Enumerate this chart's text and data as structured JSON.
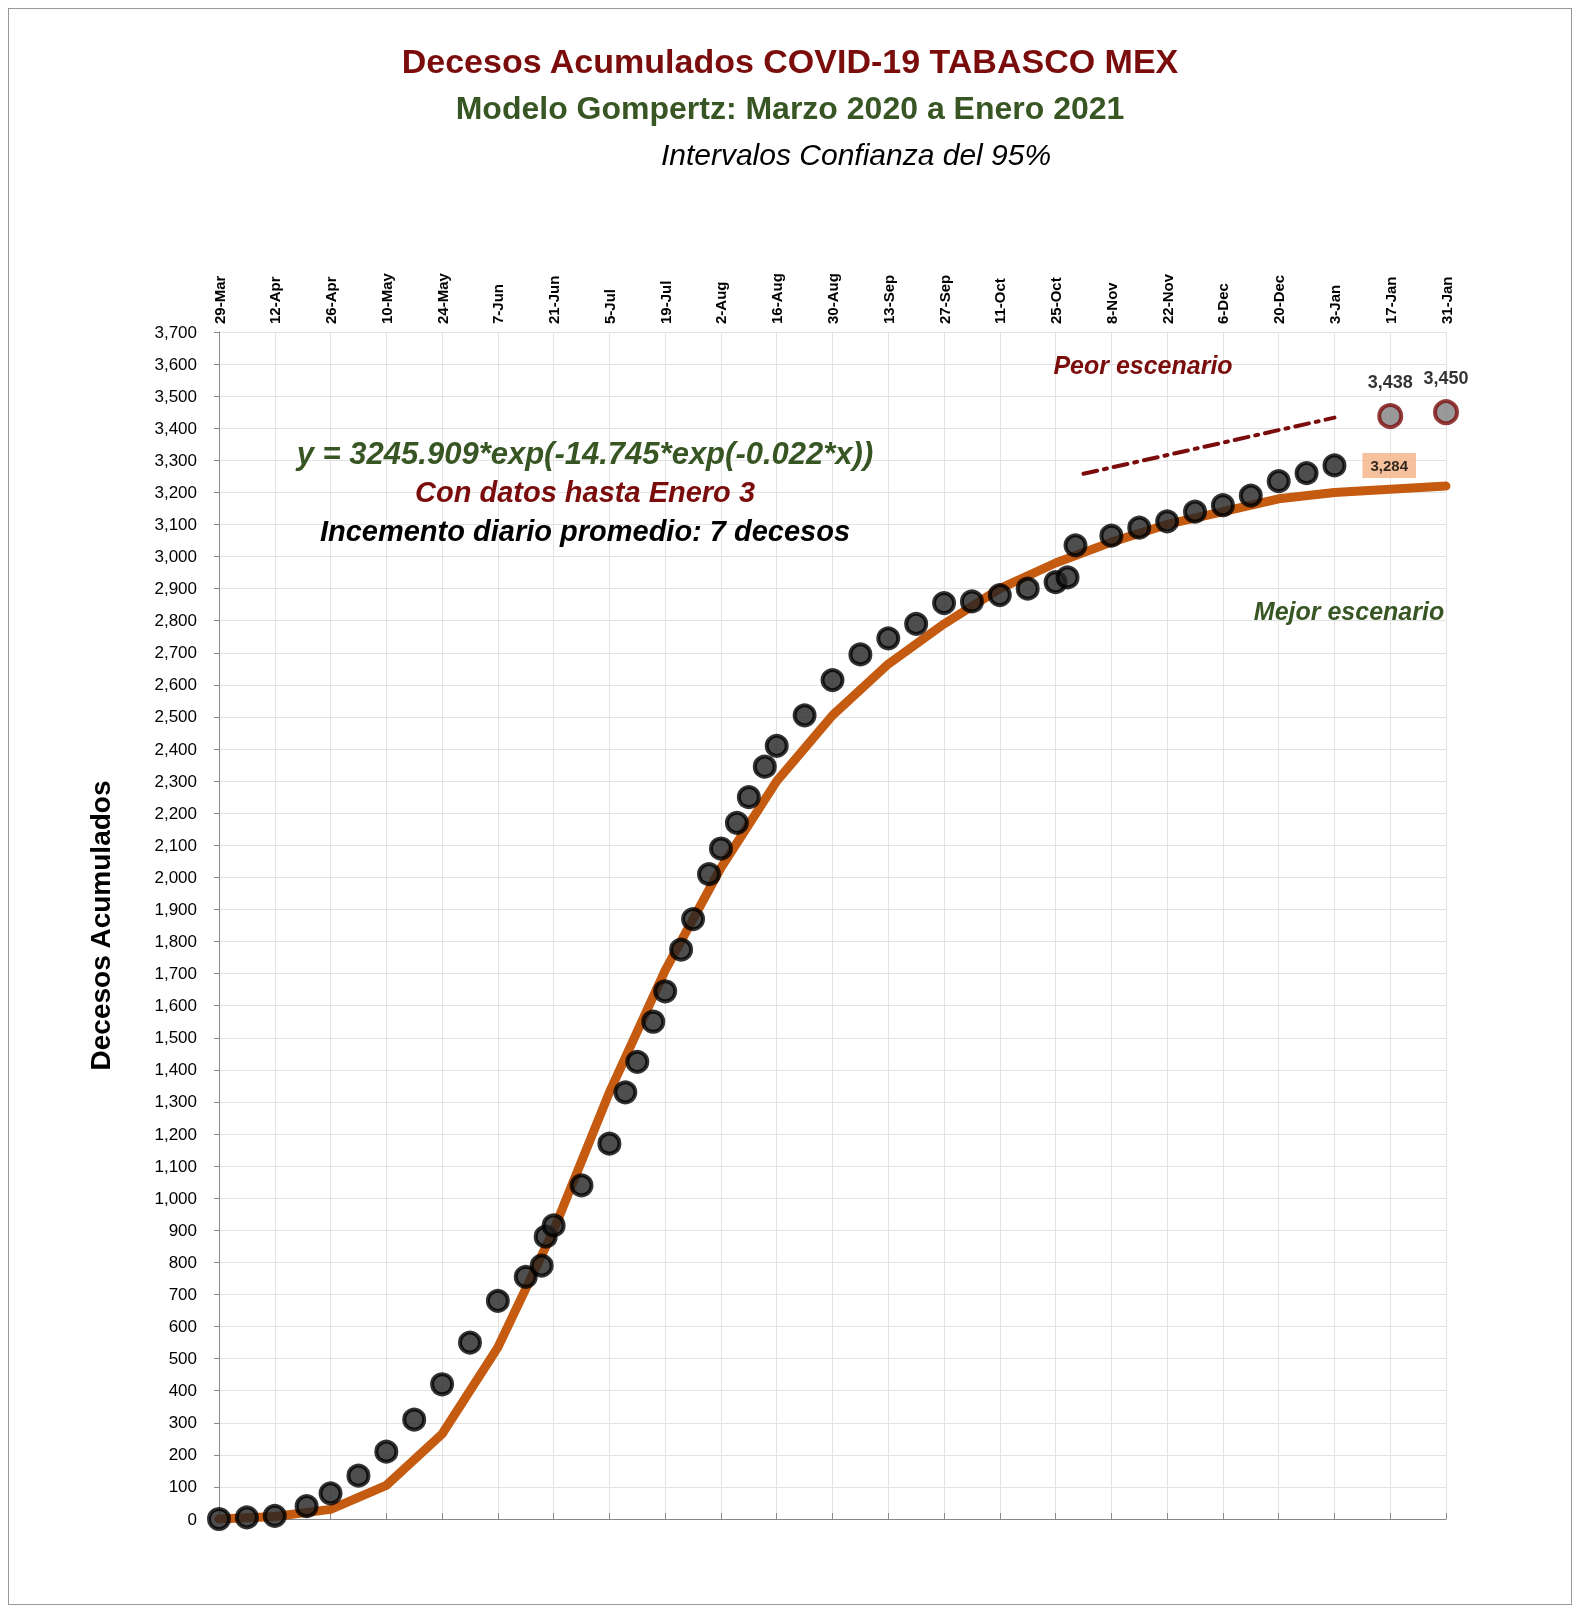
{
  "chart_data": {
    "type": "scatter",
    "title": "Decesos Acumulados COVID-19 TABASCO MEX",
    "subtitle": "Modelo Gompertz: Marzo 2020 a Enero 2021",
    "ylabel": "Decesos Acumulados",
    "annotations": [
      "Intervalos Confianza del 95%",
      "y = 3245.909*exp(-14.745*exp(-0.022*x))",
      "Con datos hasta Enero 3",
      "Incemento diario promedio: 7 decesos",
      "Peor escenario",
      "Mejor escenario"
    ],
    "xlim": [
      "2020-03-29",
      "2021-01-31"
    ],
    "xticks": [
      {
        "value": "2020-03-29",
        "label": "29-Mar"
      },
      {
        "value": "2020-04-12",
        "label": "12-Apr"
      },
      {
        "value": "2020-04-26",
        "label": "26-Apr"
      },
      {
        "value": "2020-05-10",
        "label": "10-May"
      },
      {
        "value": "2020-05-24",
        "label": "24-May"
      },
      {
        "value": "2020-06-07",
        "label": "7-Jun"
      },
      {
        "value": "2020-06-21",
        "label": "21-Jun"
      },
      {
        "value": "2020-07-05",
        "label": "5-Jul"
      },
      {
        "value": "2020-07-19",
        "label": "19-Jul"
      },
      {
        "value": "2020-08-02",
        "label": "2-Aug"
      },
      {
        "value": "2020-08-16",
        "label": "16-Aug"
      },
      {
        "value": "2020-08-30",
        "label": "30-Aug"
      },
      {
        "value": "2020-09-13",
        "label": "13-Sep"
      },
      {
        "value": "2020-09-27",
        "label": "27-Sep"
      },
      {
        "value": "2020-10-11",
        "label": "11-Oct"
      },
      {
        "value": "2020-10-25",
        "label": "25-Oct"
      },
      {
        "value": "2020-11-08",
        "label": "8-Nov"
      },
      {
        "value": "2020-11-22",
        "label": "22-Nov"
      },
      {
        "value": "2020-12-06",
        "label": "6-Dec"
      },
      {
        "value": "2020-12-20",
        "label": "20-Dec"
      },
      {
        "value": "2021-01-03",
        "label": "3-Jan"
      },
      {
        "value": "2021-01-17",
        "label": "17-Jan"
      },
      {
        "value": "2021-01-31",
        "label": "31-Jan"
      }
    ],
    "ylim": [
      0,
      3700
    ],
    "yticks": [
      0,
      100,
      200,
      300,
      400,
      500,
      600,
      700,
      800,
      900,
      {
        "value": 1000,
        "label": "1,000"
      },
      {
        "value": 1100,
        "label": "1,100"
      },
      {
        "value": 1200,
        "label": "1,200"
      },
      {
        "value": 1300,
        "label": "1,300"
      },
      {
        "value": 1400,
        "label": "1,400"
      },
      {
        "value": 1500,
        "label": "1,500"
      },
      {
        "value": 1600,
        "label": "1,600"
      },
      {
        "value": 1700,
        "label": "1,700"
      },
      {
        "value": 1800,
        "label": "1,800"
      },
      {
        "value": 1900,
        "label": "1,900"
      },
      {
        "value": 2000,
        "label": "2,000"
      },
      {
        "value": 2100,
        "label": "2,100"
      },
      {
        "value": 2200,
        "label": "2,200"
      },
      {
        "value": 2300,
        "label": "2,300"
      },
      {
        "value": 2400,
        "label": "2,400"
      },
      {
        "value": 2500,
        "label": "2,500"
      },
      {
        "value": 2600,
        "label": "2,600"
      },
      {
        "value": 2700,
        "label": "2,700"
      },
      {
        "value": 2800,
        "label": "2,800"
      },
      {
        "value": 2900,
        "label": "2,900"
      },
      {
        "value": 3000,
        "label": "3,000"
      },
      {
        "value": 3100,
        "label": "3,100"
      },
      {
        "value": 3200,
        "label": "3,200"
      },
      {
        "value": 3300,
        "label": "3,300"
      },
      {
        "value": 3400,
        "label": "3,400"
      },
      {
        "value": 3500,
        "label": "3,500"
      },
      {
        "value": 3600,
        "label": "3,600"
      },
      {
        "value": 3700,
        "label": "3,700"
      }
    ],
    "grid": true,
    "series": [
      {
        "type": "line",
        "color": "#c55a11",
        "marker": "none",
        "x": [
          "2020-03-29",
          "2020-04-12",
          "2020-04-26",
          "2020-05-10",
          "2020-05-24",
          "2020-06-07",
          "2020-06-21",
          "2020-07-05",
          "2020-07-19",
          "2020-08-02",
          "2020-08-16",
          "2020-08-30",
          "2020-09-13",
          "2020-09-27",
          "2020-10-11",
          "2020-10-25",
          "2020-11-08",
          "2020-11-22",
          "2020-12-06",
          "2020-12-20",
          "2021-01-03",
          "2021-01-17",
          "2021-01-31"
        ],
        "values": [
          0,
          8,
          30,
          105,
          265,
          535,
          900,
          1330,
          1710,
          2030,
          2300,
          2505,
          2665,
          2790,
          2900,
          2980,
          3045,
          3100,
          3140,
          3180,
          3200,
          3210,
          3220
        ]
      },
      {
        "type": "line",
        "color": "#7b0c0c",
        "marker": "none",
        "line_style": "dashed",
        "x": [
          "2020-11-01",
          "2021-01-03"
        ],
        "values": [
          3258,
          3433
        ]
      },
      {
        "color": "#222222",
        "marker": "circle",
        "x": [
          "2020-03-29",
          "2020-04-05",
          "2020-04-12",
          "2020-04-20",
          "2020-04-26",
          "2020-05-03",
          "2020-05-10",
          "2020-05-17",
          "2020-05-24",
          "2020-05-31",
          "2020-06-07",
          "2020-06-14",
          "2020-06-18",
          "2020-06-19",
          "2020-06-21",
          "2020-06-28",
          "2020-07-05",
          "2020-07-09",
          "2020-07-12",
          "2020-07-16",
          "2020-07-19",
          "2020-07-23",
          "2020-07-26",
          "2020-07-30",
          "2020-08-02",
          "2020-08-06",
          "2020-08-09",
          "2020-08-13",
          "2020-08-16",
          "2020-08-23",
          "2020-08-30",
          "2020-09-06",
          "2020-09-13",
          "2020-09-20",
          "2020-09-27",
          "2020-10-04",
          "2020-10-11",
          "2020-10-18",
          "2020-10-25",
          "2020-10-28",
          "2020-10-30",
          "2020-11-08",
          "2020-11-15",
          "2020-11-22",
          "2020-11-29",
          "2020-12-06",
          "2020-12-13",
          "2020-12-20",
          "2020-12-27",
          "2021-01-03"
        ],
        "values": [
          0,
          5,
          10,
          40,
          80,
          135,
          210,
          310,
          420,
          550,
          680,
          755,
          790,
          880,
          915,
          1040,
          1170,
          1330,
          1425,
          1550,
          1645,
          1775,
          1870,
          2010,
          2090,
          2170,
          2250,
          2345,
          2410,
          2505,
          2615,
          2695,
          2745,
          2790,
          2855,
          2860,
          2880,
          2900,
          2920,
          2935,
          3035,
          3065,
          3090,
          3110,
          3140,
          3160,
          3190,
          3235,
          3260,
          3284
        ],
        "value_labels": [
          null,
          null,
          null,
          null,
          null,
          null,
          null,
          null,
          null,
          null,
          null,
          null,
          null,
          null,
          null,
          null,
          null,
          null,
          null,
          null,
          null,
          null,
          null,
          null,
          null,
          null,
          null,
          null,
          null,
          null,
          null,
          null,
          null,
          null,
          null,
          null,
          null,
          null,
          null,
          null,
          null,
          null,
          null,
          null,
          null,
          null,
          null,
          null,
          null,
          "3,284"
        ]
      },
      {
        "color": "#808080",
        "marker": "circle",
        "x": [
          "2021-01-17",
          "2021-01-31"
        ],
        "values": [
          3438,
          3450
        ],
        "value_labels": [
          "3,438",
          "3,450"
        ]
      }
    ]
  }
}
